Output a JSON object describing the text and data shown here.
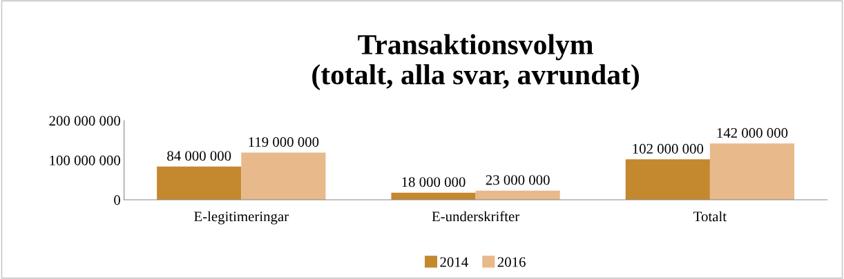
{
  "chart_data": {
    "type": "bar",
    "title": "Transaktionsvolym\n(totalt, alla svar, avrundat)",
    "categories": [
      "E-legitimeringar",
      "E-underskrifter",
      "Totalt"
    ],
    "series": [
      {
        "name": "2014",
        "color": "#c4882f",
        "values": [
          84000000,
          18000000,
          102000000
        ],
        "value_labels": [
          "84 000 000",
          "18 000 000",
          "102 000 000"
        ]
      },
      {
        "name": "2016",
        "color": "#e8b98a",
        "values": [
          119000000,
          23000000,
          142000000
        ],
        "value_labels": [
          "119 000 000",
          "23 000 000",
          "142 000 000"
        ]
      }
    ],
    "ylim": [
      0,
      200000000
    ],
    "yticks": [
      {
        "value": 0,
        "label": "0"
      },
      {
        "value": 100000000,
        "label": "100 000 000"
      },
      {
        "value": 200000000,
        "label": "200 000 000"
      }
    ],
    "grid": false,
    "legend": "bottom"
  }
}
